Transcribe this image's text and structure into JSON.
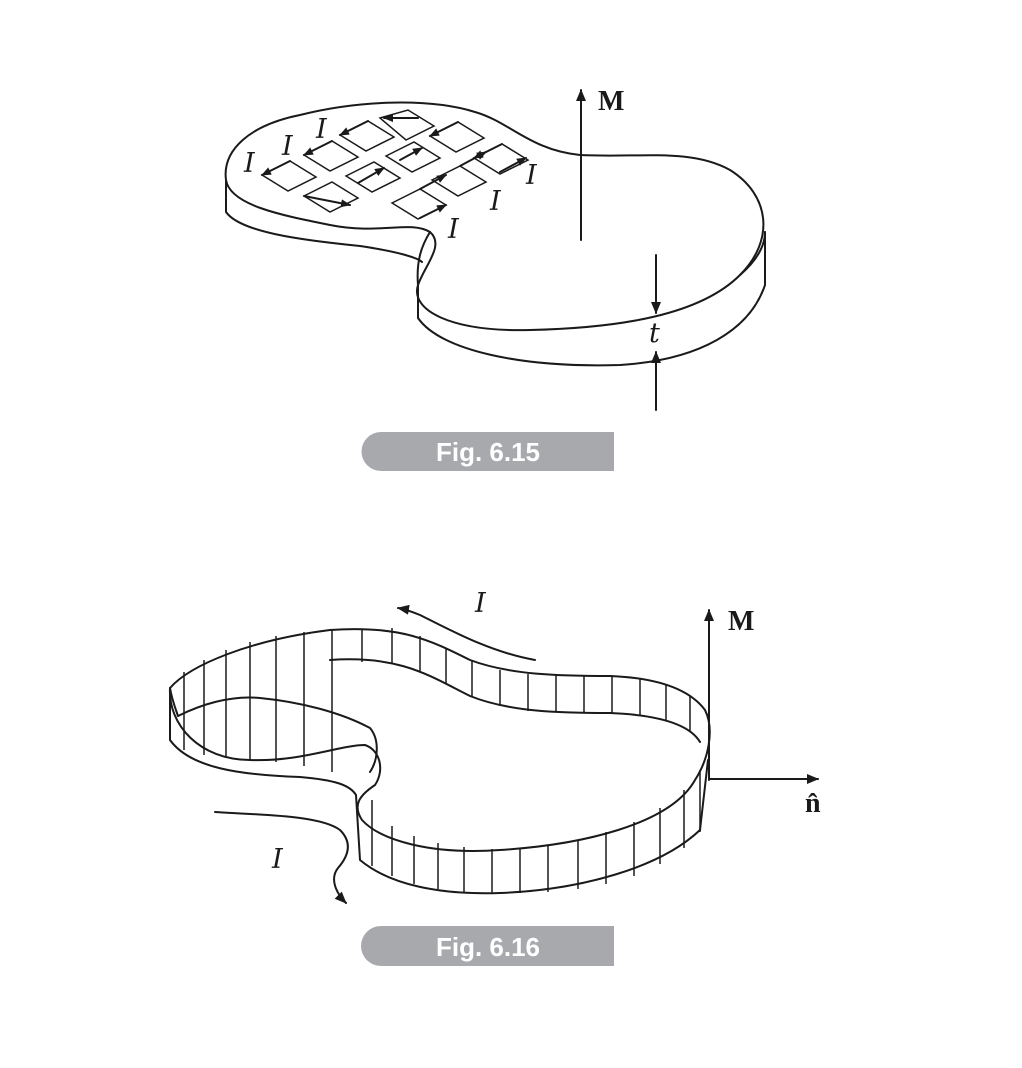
{
  "fig1": {
    "caption": "Fig. 6.15",
    "current_label": "I",
    "magnetization_label": "M",
    "thickness_label": "t"
  },
  "fig2": {
    "caption": "Fig. 6.16",
    "current_label": "I",
    "magnetization_label": "M",
    "normal_label": "n̂"
  },
  "colors": {
    "ink": "#1a1a1a",
    "caption_band": "#a7a9ac",
    "caption_text": "#ffffff"
  }
}
